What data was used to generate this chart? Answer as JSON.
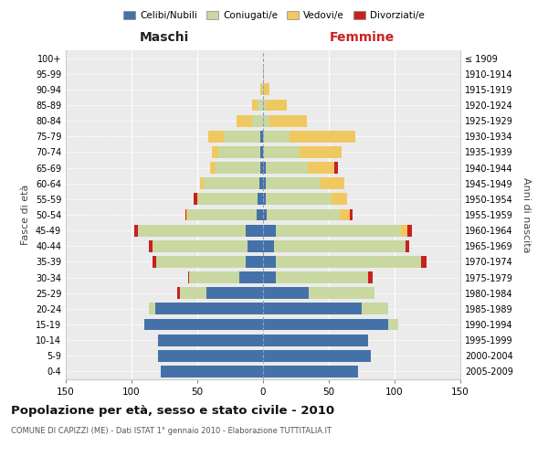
{
  "age_groups": [
    "0-4",
    "5-9",
    "10-14",
    "15-19",
    "20-24",
    "25-29",
    "30-34",
    "35-39",
    "40-44",
    "45-49",
    "50-54",
    "55-59",
    "60-64",
    "65-69",
    "70-74",
    "75-79",
    "80-84",
    "85-89",
    "90-94",
    "95-99",
    "100+"
  ],
  "birth_years": [
    "2005-2009",
    "2000-2004",
    "1995-1999",
    "1990-1994",
    "1985-1989",
    "1980-1984",
    "1975-1979",
    "1970-1974",
    "1965-1969",
    "1960-1964",
    "1955-1959",
    "1950-1954",
    "1945-1949",
    "1940-1944",
    "1935-1939",
    "1930-1934",
    "1925-1929",
    "1920-1924",
    "1915-1919",
    "1910-1914",
    "≤ 1909"
  ],
  "maschi": {
    "celibi": [
      78,
      80,
      80,
      90,
      82,
      43,
      18,
      13,
      12,
      13,
      5,
      4,
      3,
      2,
      2,
      2,
      0,
      0,
      0,
      0,
      0
    ],
    "coniugati": [
      0,
      0,
      0,
      0,
      5,
      20,
      38,
      68,
      72,
      82,
      52,
      45,
      42,
      34,
      32,
      28,
      8,
      4,
      1,
      0,
      0
    ],
    "vedovi": [
      0,
      0,
      0,
      0,
      0,
      0,
      0,
      0,
      0,
      0,
      1,
      1,
      3,
      4,
      5,
      12,
      12,
      4,
      1,
      0,
      0
    ],
    "divorziati": [
      0,
      0,
      0,
      0,
      0,
      2,
      1,
      3,
      3,
      3,
      1,
      3,
      0,
      0,
      0,
      0,
      0,
      0,
      0,
      0,
      0
    ]
  },
  "femmine": {
    "nubili": [
      72,
      82,
      80,
      95,
      75,
      35,
      10,
      10,
      8,
      10,
      3,
      2,
      2,
      2,
      0,
      0,
      0,
      0,
      0,
      0,
      0
    ],
    "coniugate": [
      0,
      0,
      0,
      8,
      20,
      50,
      70,
      110,
      100,
      95,
      55,
      50,
      42,
      32,
      28,
      20,
      5,
      2,
      1,
      0,
      0
    ],
    "vedove": [
      0,
      0,
      0,
      0,
      0,
      0,
      0,
      0,
      0,
      5,
      8,
      12,
      18,
      20,
      32,
      50,
      28,
      16,
      4,
      1,
      0
    ],
    "divorziate": [
      0,
      0,
      0,
      0,
      0,
      0,
      3,
      4,
      3,
      3,
      2,
      0,
      0,
      3,
      0,
      0,
      0,
      0,
      0,
      0,
      0
    ]
  },
  "colors": {
    "celibi": "#4472a8",
    "coniugati": "#c8d8a0",
    "vedovi": "#f0c860",
    "divorziati": "#c82020"
  },
  "title": "Popolazione per età, sesso e stato civile - 2010",
  "subtitle": "COMUNE DI CAPIZZI (ME) - Dati ISTAT 1° gennaio 2010 - Elaborazione TUTTITALIA.IT",
  "xlabel_left": "Maschi",
  "xlabel_right": "Femmine",
  "ylabel_left": "Fasce di età",
  "ylabel_right": "Anni di nascita",
  "xlim": 150,
  "legend_labels": [
    "Celibi/Nubili",
    "Coniugati/e",
    "Vedovi/e",
    "Divorziati/e"
  ],
  "background": "#ffffff",
  "plot_bg": "#ebebeb"
}
